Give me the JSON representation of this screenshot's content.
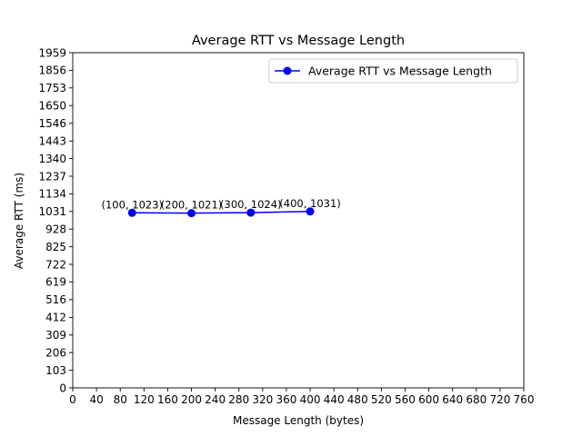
{
  "chart_data": {
    "type": "line",
    "title": "Average RTT vs Message Length",
    "xlabel": "Message Length (bytes)",
    "ylabel": "Average RTT (ms)",
    "xlim": [
      0,
      760
    ],
    "ylim": [
      0,
      1959
    ],
    "x_ticks": [
      0,
      40,
      80,
      120,
      160,
      200,
      240,
      280,
      320,
      360,
      400,
      440,
      480,
      520,
      560,
      600,
      640,
      680,
      720,
      760
    ],
    "x_tick_labels": [
      "0",
      "40",
      "80",
      "120",
      "160",
      "200",
      "240",
      "280",
      "320",
      "360",
      "400",
      "440",
      "480",
      "520",
      "560",
      "600",
      "640",
      "680",
      "720",
      "760"
    ],
    "y_ticks": [
      0,
      103,
      206,
      309,
      412,
      516,
      619,
      722,
      825,
      928,
      1031,
      1134,
      1237,
      1340,
      1443,
      1546,
      1650,
      1753,
      1856,
      1959
    ],
    "y_tick_labels": [
      "0",
      "103",
      "206",
      "309",
      "412",
      "516",
      "619",
      "722",
      "825",
      "928",
      "1031",
      "1134",
      "1237",
      "1340",
      "1443",
      "1546",
      "1650",
      "1753",
      "1856",
      "1959"
    ],
    "grid": false,
    "legend_position": "top-right",
    "series": [
      {
        "name": "Average RTT vs Message Length",
        "color": "#0000ff",
        "marker": "circle",
        "x": [
          100,
          200,
          300,
          400
        ],
        "y": [
          1023,
          1021,
          1024,
          1031
        ],
        "point_labels": [
          "(100, 1023)",
          "(200, 1021)",
          "(300, 1024)",
          "(400, 1031)"
        ]
      }
    ]
  }
}
